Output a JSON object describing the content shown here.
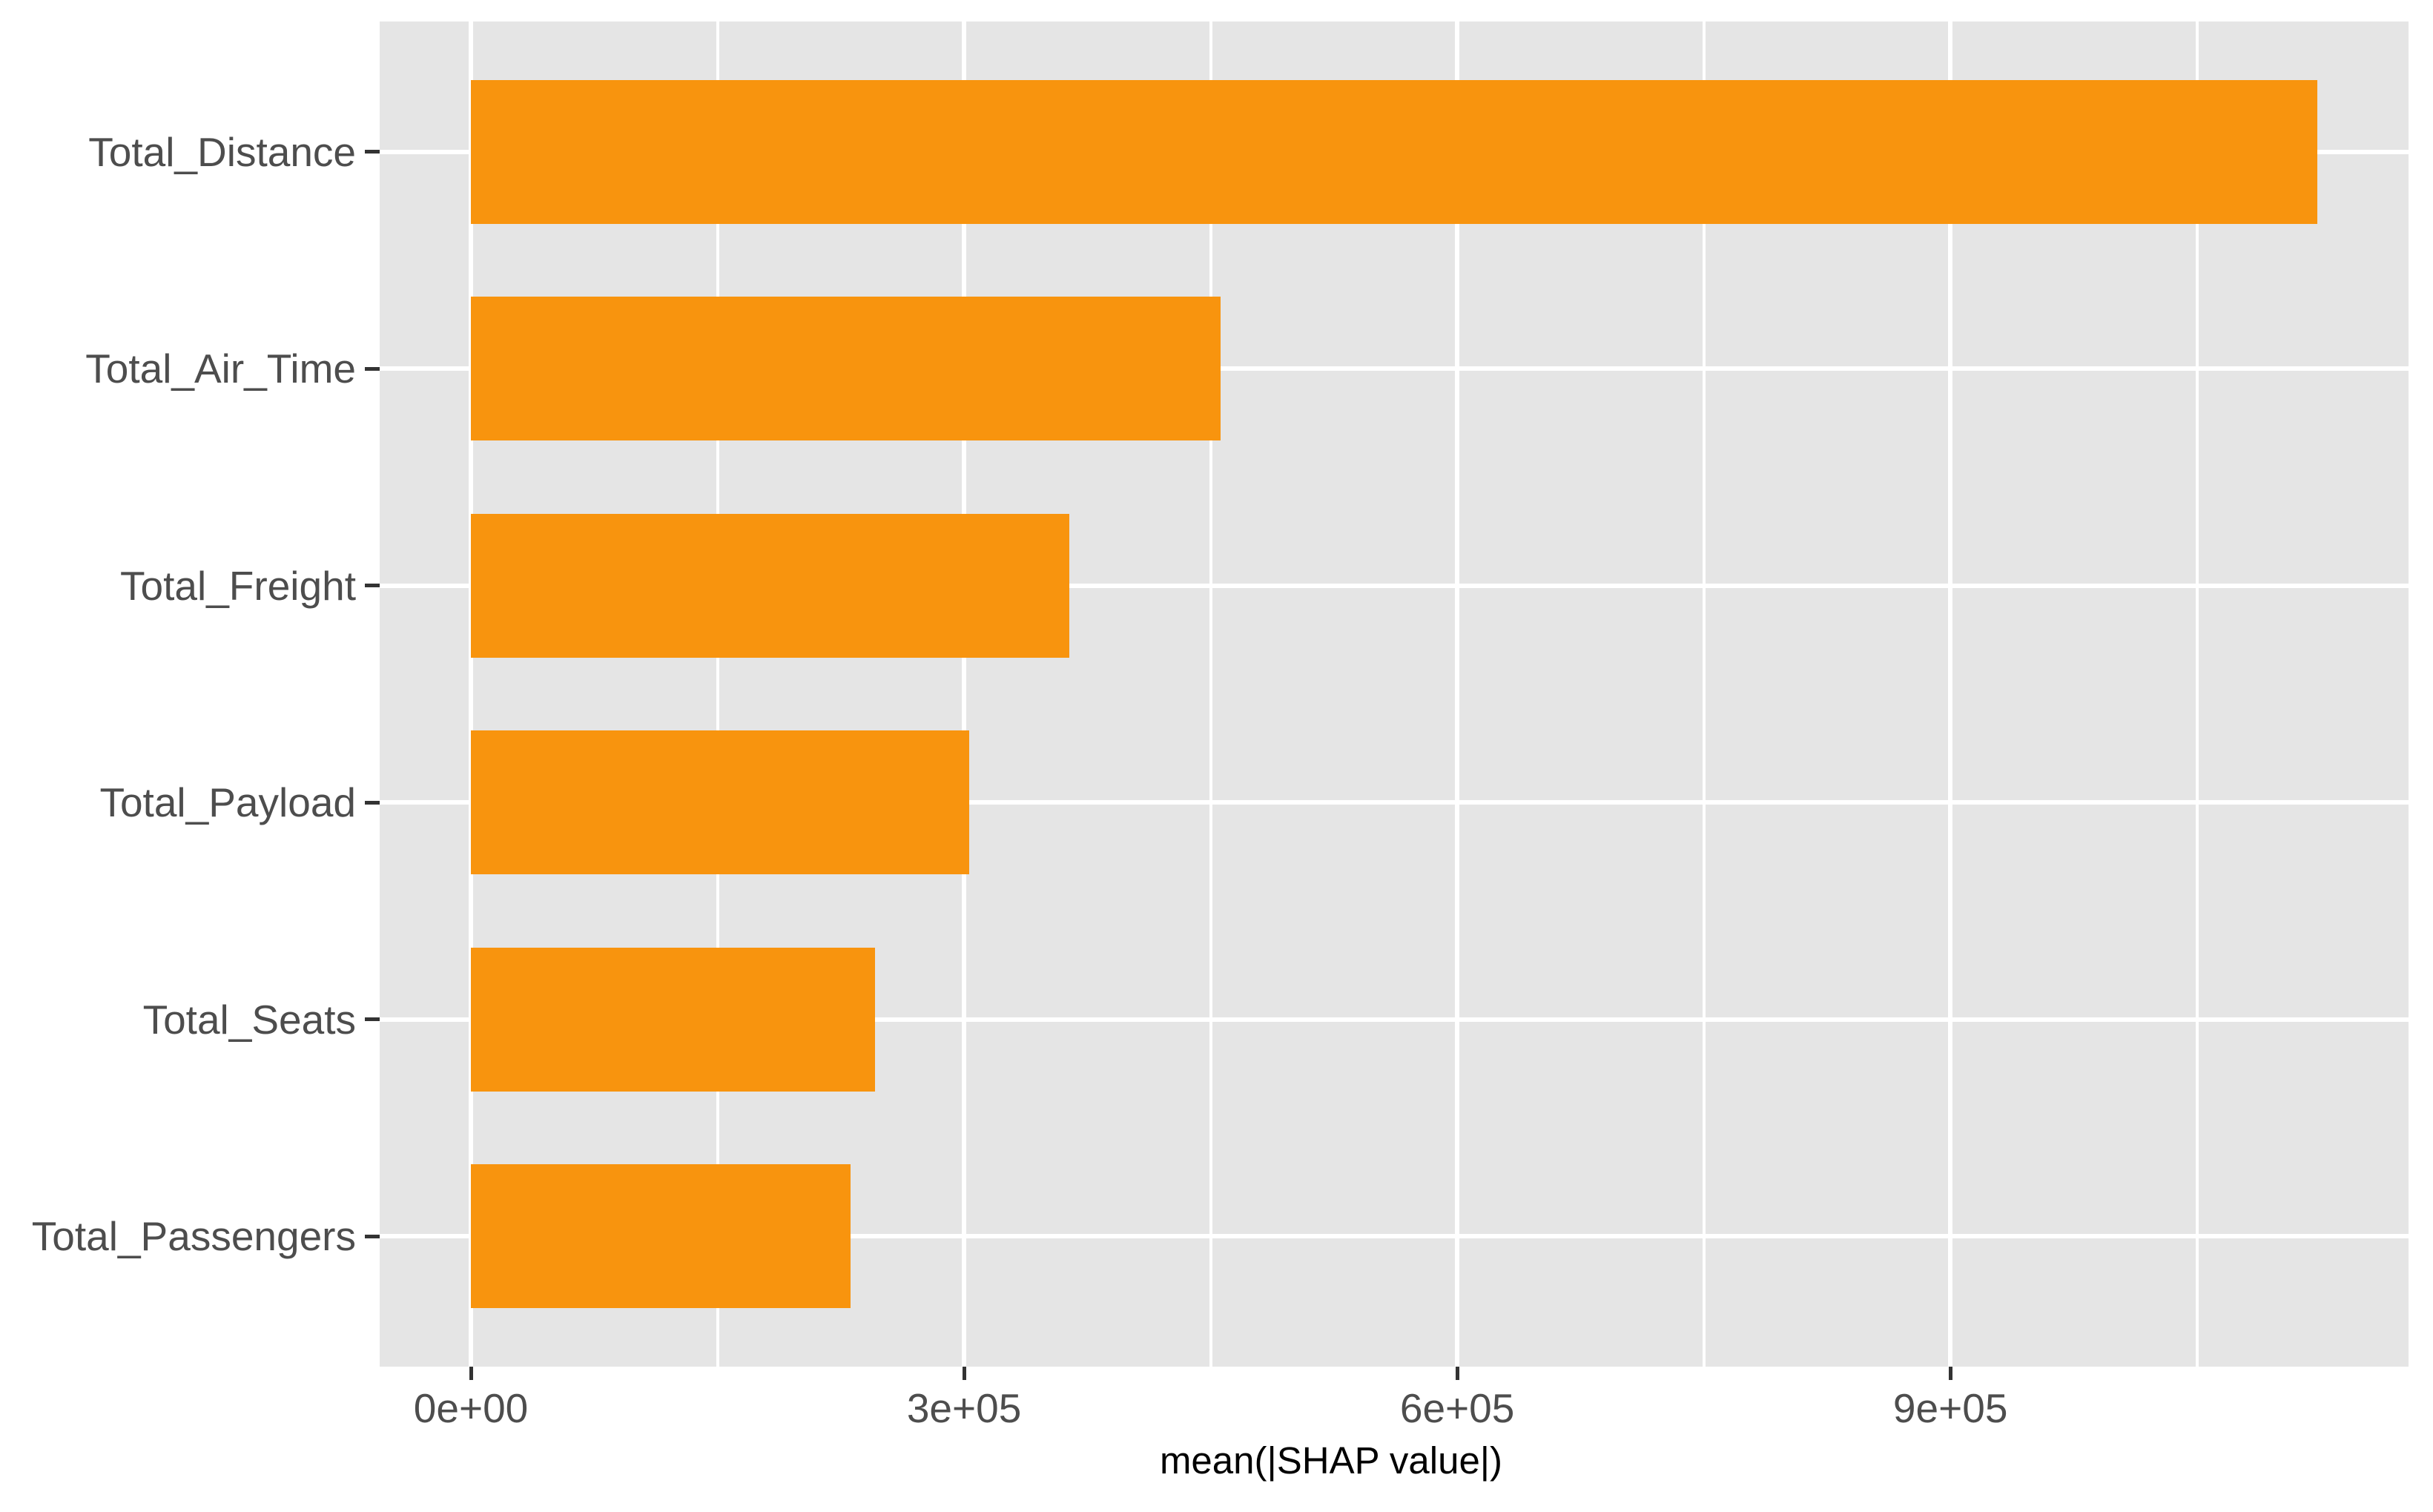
{
  "chart_data": {
    "type": "bar",
    "orientation": "horizontal",
    "title": "",
    "xlabel": "mean(|SHAP value|)",
    "ylabel": "",
    "categories": [
      "Total_Distance",
      "Total_Air_Time",
      "Total_Freight",
      "Total_Payload",
      "Total_Seats",
      "Total_Passengers"
    ],
    "values": [
      1123000,
      456000,
      364000,
      303000,
      246000,
      231000
    ],
    "xlim": [
      -55500,
      1178700
    ],
    "x_major_ticks": {
      "labels": [
        "0e+00",
        "3e+05",
        "6e+05",
        "9e+05"
      ],
      "values": [
        0,
        300000,
        600000,
        900000
      ]
    },
    "x_minor_gridlines": [
      150000,
      450000,
      750000,
      1050000
    ],
    "grid": "white major and minor vertical gridlines plus white horizontal gridline per category, on gray panel",
    "legend_position": "none",
    "colors": {
      "bar_fill": "#F8940E",
      "panel_background": "#E5E5E5",
      "gridline": "#FFFFFF",
      "tick_mark": "#333333",
      "tick_label": "#4D4D4D",
      "axis_title": "#000000",
      "figure_background": "#FFFFFF"
    }
  }
}
